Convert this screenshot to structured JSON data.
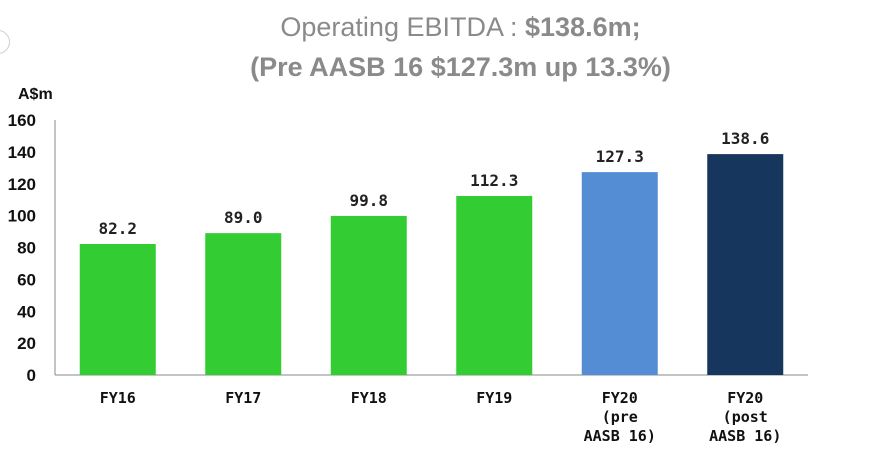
{
  "chart_data": {
    "type": "bar",
    "title_prefix": "Operating EBITDA : ",
    "title_value": "$138.6m;",
    "subtitle": "(Pre AASB 16 $127.3m up 13.3%)",
    "ylabel": "A$m",
    "xlabel": "",
    "ylim": [
      0,
      160
    ],
    "yticks": [
      0,
      20,
      40,
      60,
      80,
      100,
      120,
      140,
      160
    ],
    "categories": [
      [
        "FY16"
      ],
      [
        "FY17"
      ],
      [
        "FY18"
      ],
      [
        "FY19"
      ],
      [
        "FY20",
        "(pre",
        "AASB 16)"
      ],
      [
        "FY20",
        "(post",
        "AASB 16)"
      ]
    ],
    "values": [
      82.2,
      89.0,
      99.8,
      112.3,
      127.3,
      138.6
    ],
    "value_labels": [
      "82.2",
      "89.0",
      "99.8",
      "112.3",
      "127.3",
      "138.6"
    ],
    "colors": [
      "#33cc33",
      "#33cc33",
      "#33cc33",
      "#33cc33",
      "#548dd4",
      "#17365d"
    ],
    "grid": false
  }
}
